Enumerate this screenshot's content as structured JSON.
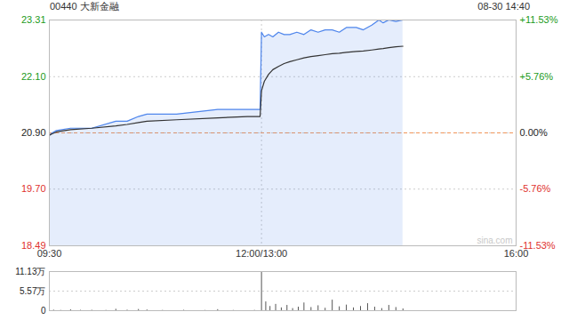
{
  "chart_data": [
    {
      "type": "line",
      "title": "00440 大新金融",
      "subtitle": "08-30 14:40",
      "x": [
        0,
        2,
        5,
        15,
        30,
        47,
        55,
        63,
        69,
        90,
        119,
        140,
        149,
        150,
        152,
        155,
        158,
        162,
        166,
        170,
        175,
        180,
        185,
        190,
        195,
        200,
        205,
        210,
        217,
        222,
        228,
        233,
        236,
        240,
        245,
        250
      ],
      "series": [
        {
          "type": "area",
          "color": "#4f86ec",
          "values": [
            20.85,
            20.9,
            20.95,
            21.0,
            21.0,
            21.15,
            21.15,
            21.25,
            21.3,
            21.3,
            21.4,
            21.4,
            21.4,
            23.05,
            22.95,
            23.0,
            22.95,
            23.05,
            23.0,
            23.0,
            23.05,
            23.0,
            23.1,
            23.05,
            23.1,
            23.1,
            23.05,
            23.15,
            23.15,
            23.1,
            23.2,
            23.31,
            23.25,
            23.31,
            23.28,
            23.31
          ]
        },
        {
          "type": "line",
          "color": "#333333",
          "values": [
            20.85,
            20.88,
            20.92,
            20.97,
            21.0,
            21.05,
            21.08,
            21.12,
            21.15,
            21.18,
            21.22,
            21.25,
            21.25,
            21.8,
            22.0,
            22.15,
            22.25,
            22.32,
            22.38,
            22.42,
            22.46,
            22.5,
            22.53,
            22.55,
            22.57,
            22.59,
            22.6,
            22.62,
            22.64,
            22.65,
            22.67,
            22.69,
            22.7,
            22.72,
            22.74,
            22.75
          ]
        }
      ],
      "prev_close": 20.9,
      "xlim": [
        0,
        330
      ],
      "xticks": [
        {
          "value": 0,
          "label": "09:30"
        },
        {
          "value": 150,
          "label": "12:00/13:00"
        },
        {
          "value": 330,
          "label": "16:00"
        }
      ],
      "ylim": [
        18.49,
        23.31
      ],
      "yticks": [
        23.31,
        {
          "value": 22.1,
          "label": "22.10"
        },
        {
          "value": 20.9,
          "label": "20.90"
        },
        {
          "value": 19.7,
          "label": "19.70"
        },
        18.49
      ],
      "y2lim": [
        -11.53,
        11.53
      ],
      "y2ticks": [
        {
          "value": 11.53,
          "label": "+11.53%"
        },
        {
          "value": 5.76,
          "label": "+5.76%"
        },
        {
          "value": 0,
          "label": "0.00%"
        },
        {
          "value": -5.76,
          "label": "-5.76%"
        },
        {
          "value": -11.53,
          "label": "-11.53%"
        }
      ],
      "grid": true,
      "watermark": "sina.com"
    },
    {
      "type": "bar",
      "x": [
        0,
        3,
        8,
        15,
        22,
        30,
        40,
        47,
        55,
        63,
        69,
        80,
        95,
        110,
        119,
        130,
        145,
        150,
        153,
        156,
        160,
        164,
        168,
        172,
        176,
        180,
        185,
        190,
        195,
        200,
        205,
        210,
        215,
        220,
        225,
        230,
        235,
        240,
        245,
        250
      ],
      "values": [
        3000,
        1500,
        800,
        2500,
        1000,
        1200,
        800,
        4000,
        1500,
        3500,
        2000,
        800,
        1200,
        600,
        3000,
        700,
        900,
        111300,
        25000,
        12000,
        18000,
        8000,
        15000,
        6000,
        10000,
        22000,
        9000,
        14000,
        7000,
        30000,
        11000,
        16000,
        8000,
        12000,
        20000,
        10000,
        6000,
        15000,
        9000,
        5000
      ],
      "color": "#555555",
      "xlim": [
        0,
        330
      ],
      "ylim": [
        0,
        111300
      ],
      "yticks": [
        {
          "value": 111300,
          "label": "11.13万"
        },
        {
          "value": 55700,
          "label": "5.57万"
        },
        0
      ],
      "grid": true,
      "tick_labels": "y"
    }
  ]
}
